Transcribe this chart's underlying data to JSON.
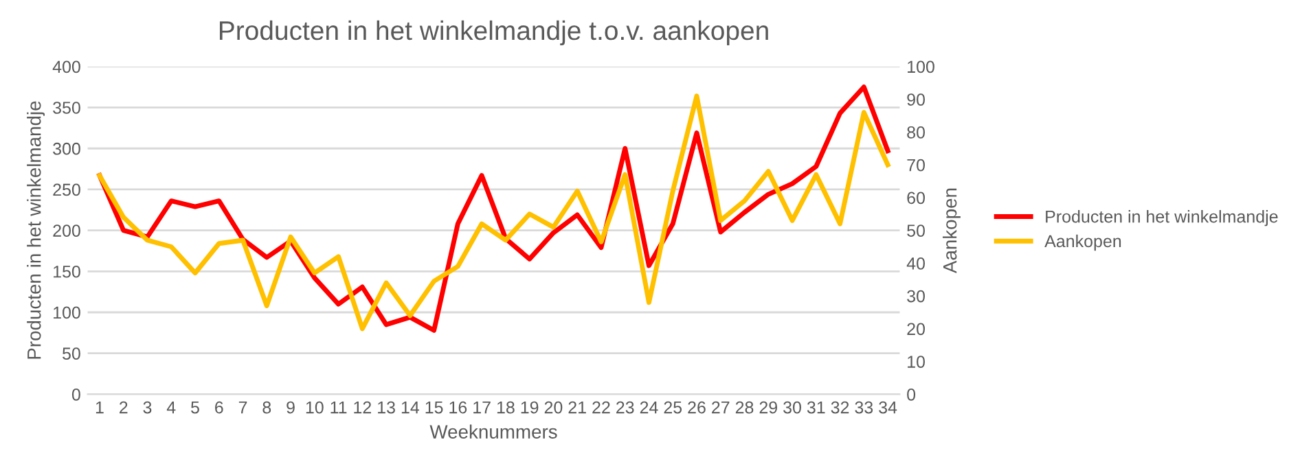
{
  "chart_data": {
    "type": "line",
    "title": "Producten in het winkelmandje t.o.v. aankopen",
    "xlabel": "Weeknummers",
    "ylabel": "Producten in het winkelmandje",
    "y2label": "Aankopen",
    "categories": [
      "1",
      "2",
      "3",
      "4",
      "5",
      "6",
      "7",
      "8",
      "9",
      "10",
      "11",
      "12",
      "13",
      "14",
      "15",
      "16",
      "17",
      "18",
      "19",
      "20",
      "21",
      "22",
      "23",
      "24",
      "25",
      "26",
      "27",
      "28",
      "29",
      "30",
      "31",
      "32",
      "33",
      "34"
    ],
    "series": [
      {
        "name": "Producten in het winkelmandje",
        "color": "#ff0000",
        "values": [
          267,
          200,
          192,
          236,
          229,
          236,
          189,
          167,
          187,
          142,
          110,
          131,
          85,
          94,
          78,
          208,
          267,
          190,
          165,
          197,
          219,
          179,
          300,
          157,
          208,
          319,
          198,
          222,
          244,
          257,
          278,
          343,
          375,
          297
        ]
      },
      {
        "name": "Aankopen",
        "color": "#ffc000",
        "axis": "y2",
        "values": [
          66.7,
          54,
          47,
          45,
          37,
          46,
          47,
          27,
          48,
          37,
          42,
          20,
          34,
          24,
          34.5,
          39,
          52,
          47,
          55,
          51,
          62,
          46.5,
          67,
          28,
          62,
          91,
          53,
          59,
          68,
          53,
          67,
          52,
          86,
          70
        ]
      }
    ],
    "ylim": [
      0,
      400
    ],
    "yticks": [
      0,
      50,
      100,
      150,
      200,
      250,
      300,
      350,
      400
    ],
    "y2lim": [
      0,
      100
    ],
    "y2ticks": [
      0,
      10,
      20,
      30,
      40,
      50,
      60,
      70,
      80,
      90,
      100
    ],
    "grid": "y",
    "legend": "right",
    "marker": "none",
    "line_style": "solid"
  }
}
